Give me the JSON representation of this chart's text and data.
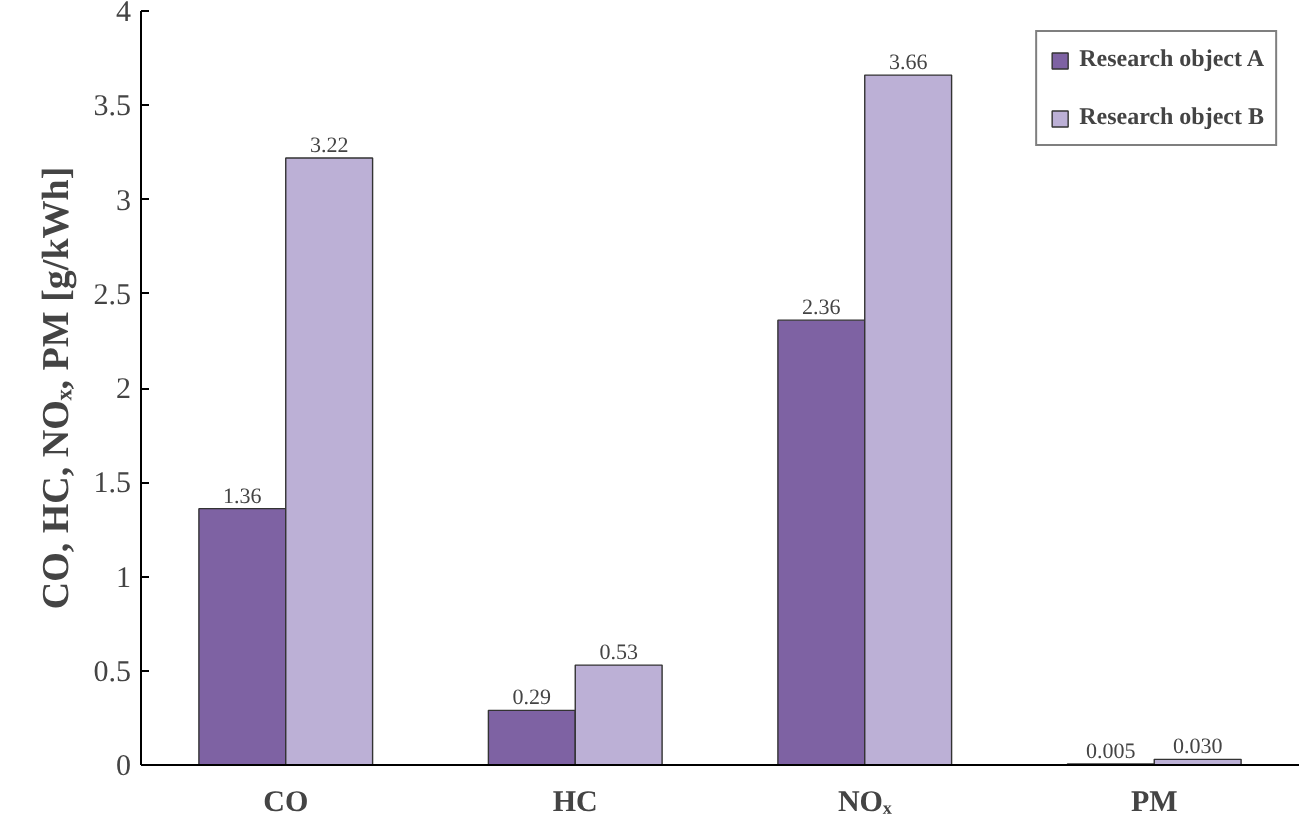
{
  "chart_data": {
    "type": "bar",
    "ylabel": "CO, HC, NOₓ, PM [g/kWh]",
    "categories": [
      "CO",
      "HC",
      "NOₓ",
      "PM"
    ],
    "series": [
      {
        "name": "Research object A",
        "color": "#7e62a3",
        "values": [
          1.36,
          0.29,
          2.36,
          0.005
        ],
        "value_labels": [
          "1.36",
          "0.29",
          "2.36",
          "0.005"
        ]
      },
      {
        "name": "Research object B",
        "color": "#bcb0d6",
        "values": [
          3.22,
          0.53,
          3.66,
          0.03
        ],
        "value_labels": [
          "3.22",
          "0.53",
          "3.66",
          "0.030"
        ]
      }
    ],
    "ylim": [
      0,
      4
    ],
    "yticks": [
      0,
      0.5,
      1,
      1.5,
      2,
      2.5,
      3,
      3.5,
      4
    ],
    "grid": false,
    "legend": "top right"
  }
}
